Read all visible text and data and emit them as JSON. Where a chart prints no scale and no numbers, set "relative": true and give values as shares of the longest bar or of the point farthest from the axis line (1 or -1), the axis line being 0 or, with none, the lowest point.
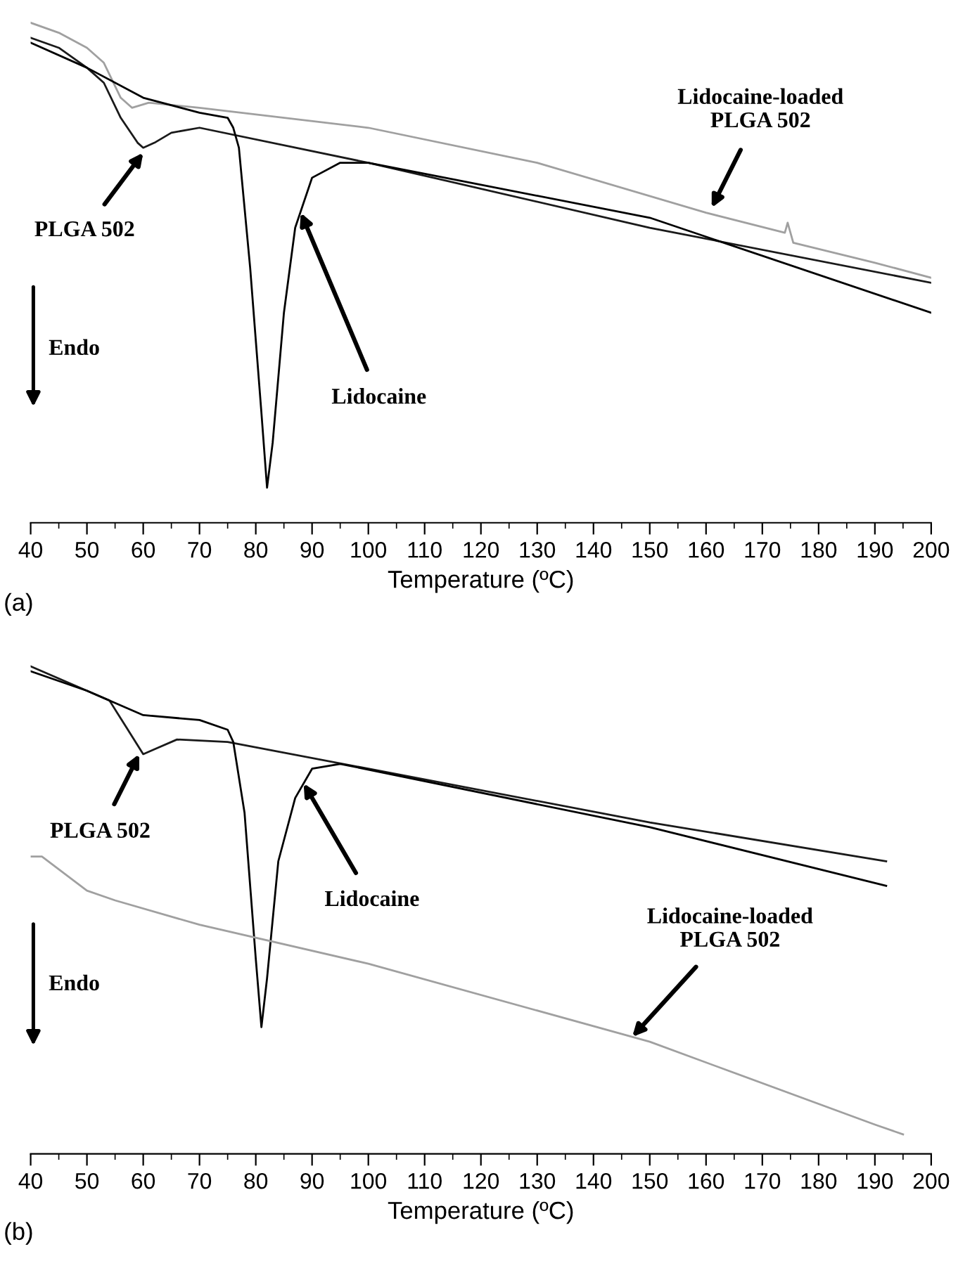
{
  "chart_data": [
    {
      "type": "line",
      "relative": true,
      "xlabel": "Temperature (ºC)",
      "xlim": [
        40,
        200
      ],
      "xticks": [
        40,
        50,
        60,
        70,
        80,
        90,
        100,
        110,
        120,
        130,
        140,
        150,
        160,
        170,
        180,
        190,
        200
      ],
      "tick_labels": "x",
      "grid": false,
      "legend": false,
      "series": [
        {
          "color": "#a0a0a0",
          "x": [
            40,
            45,
            50,
            53,
            56,
            58,
            61,
            70,
            100,
            130,
            160,
            174,
            174.5,
            175.5,
            190,
            200
          ],
          "values": [
            1.0,
            0.98,
            0.95,
            0.92,
            0.85,
            0.83,
            0.84,
            0.83,
            0.79,
            0.72,
            0.62,
            0.58,
            0.6,
            0.56,
            0.52,
            0.49
          ]
        },
        {
          "color": "#1a1a1a",
          "x": [
            40,
            45,
            50,
            53,
            56,
            59,
            60,
            62,
            65,
            70,
            100,
            150,
            200
          ],
          "values": [
            0.97,
            0.95,
            0.91,
            0.88,
            0.81,
            0.76,
            0.75,
            0.76,
            0.78,
            0.79,
            0.72,
            0.59,
            0.48
          ]
        },
        {
          "color": "#000000",
          "x": [
            40,
            50,
            60,
            70,
            75,
            76,
            77,
            79,
            81,
            82,
            83,
            85,
            87,
            90,
            95,
            100,
            150,
            200
          ],
          "values": [
            0.96,
            0.91,
            0.85,
            0.82,
            0.81,
            0.79,
            0.75,
            0.51,
            0.22,
            0.07,
            0.16,
            0.42,
            0.59,
            0.69,
            0.72,
            0.72,
            0.61,
            0.42
          ]
        }
      ],
      "annotations": [
        {
          "text": "PLGA 502",
          "x": 60,
          "y": 0.74
        },
        {
          "text": "Lidocaine",
          "x": 88,
          "y": 0.62
        },
        {
          "text": "Lidocaine-loaded\nPLGA 502",
          "x": 161,
          "y": 0.63
        },
        "Endo",
        "(a)"
      ]
    },
    {
      "type": "line",
      "relative": true,
      "xlabel": "Temperature (ºC)",
      "xlim": [
        40,
        200
      ],
      "xticks": [
        40,
        50,
        60,
        70,
        80,
        90,
        100,
        110,
        120,
        130,
        140,
        150,
        160,
        170,
        180,
        190,
        200
      ],
      "tick_labels": "x",
      "grid": false,
      "legend": false,
      "series": [
        {
          "color": "#1a1a1a",
          "x": [
            40,
            50,
            54,
            57,
            60,
            62,
            66,
            75,
            100,
            150,
            192
          ],
          "values": [
            1.0,
            0.95,
            0.93,
            0.875,
            0.82,
            0.83,
            0.85,
            0.845,
            0.79,
            0.68,
            0.6
          ]
        },
        {
          "color": "#000000",
          "x": [
            40,
            50,
            60,
            70,
            75,
            76,
            78,
            80,
            81,
            82,
            84,
            87,
            90,
            95,
            150,
            192
          ],
          "values": [
            0.99,
            0.95,
            0.9,
            0.89,
            0.87,
            0.845,
            0.7,
            0.4,
            0.26,
            0.36,
            0.6,
            0.73,
            0.79,
            0.8,
            0.67,
            0.55
          ]
        },
        {
          "color": "#a0a0a0",
          "x": [
            40,
            42,
            50,
            55,
            70,
            100,
            150,
            190,
            195
          ],
          "values": [
            0.61,
            0.61,
            0.54,
            0.52,
            0.47,
            0.39,
            0.23,
            0.06,
            0.04
          ]
        }
      ],
      "annotations": [
        {
          "text": "PLGA 502",
          "x": 59.3,
          "y": 0.82
        },
        {
          "text": "Lidocaine",
          "x": 88.5,
          "y": 0.76
        },
        {
          "text": "Lidocaine-loaded\nPLGA 502",
          "x": 146.9,
          "y": 0.24
        },
        "Endo",
        "(b)"
      ]
    }
  ]
}
